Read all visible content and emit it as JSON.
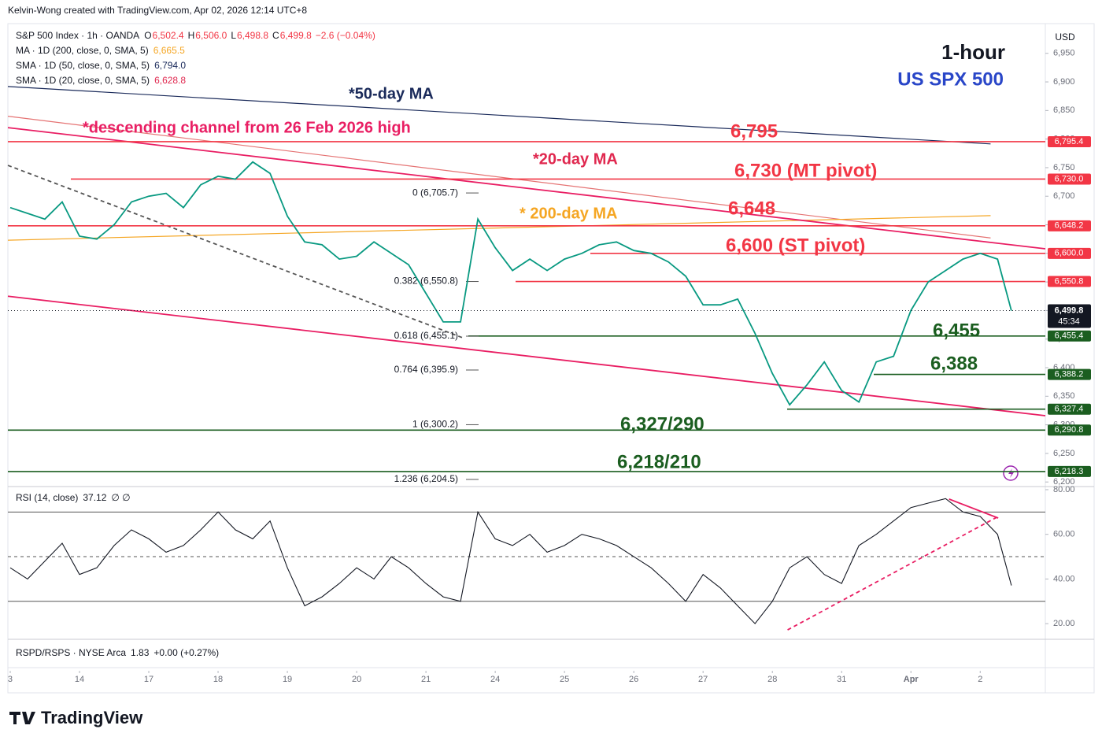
{
  "header": {
    "credit": "Kelvin-Wong created with TradingView.com, Apr 02, 2026 12:14 UTC+8"
  },
  "legend": {
    "symbol": "S&P 500 Index · 1h · OANDA",
    "ohlc": [
      {
        "key": "O",
        "value": "6,502.4"
      },
      {
        "key": "H",
        "value": "6,506.0"
      },
      {
        "key": "L",
        "value": "6,498.8"
      },
      {
        "key": "C",
        "value": "6,499.8"
      }
    ],
    "change": "−2.6 (−0.04%)",
    "indicators": [
      {
        "label": "MA · 1D (200, close, 0, SMA, 5)",
        "value": "6,665.5",
        "color": "#f5a623"
      },
      {
        "label": "SMA · 1D (50, close, 0, SMA, 5)",
        "value": "6,794.0",
        "color": "#1a2a5a"
      },
      {
        "label": "SMA · 1D (20, close, 0, SMA, 5)",
        "value": "6,628.8",
        "color": "#e0284f"
      }
    ]
  },
  "chart_data": [
    {
      "type": "line",
      "title": "US SPX 500",
      "subtitle": "1-hour",
      "currency": "USD",
      "x": [
        0,
        0.25,
        0.5,
        0.75,
        1,
        1.25,
        1.5,
        1.75,
        2,
        2.25,
        2.5,
        2.75,
        3,
        3.25,
        3.5,
        3.75,
        4,
        4.25,
        4.5,
        4.75,
        5,
        5.25,
        5.5,
        5.75,
        6,
        6.25,
        6.5,
        6.75,
        7,
        7.25,
        7.5,
        7.75,
        8,
        8.25,
        8.5,
        8.75,
        9,
        9.25,
        9.5,
        9.75,
        10,
        10.25,
        10.5,
        10.75,
        11,
        11.25,
        11.5,
        11.75,
        12,
        12.25,
        12.5,
        12.75,
        13,
        13.25,
        13.5,
        13.75,
        14,
        14.25,
        14.45
      ],
      "series": [
        {
          "color": "#089981",
          "values": [
            6680,
            6670,
            6660,
            6690,
            6630,
            6625,
            6650,
            6690,
            6700,
            6705,
            6680,
            6720,
            6735,
            6730,
            6760,
            6740,
            6665,
            6620,
            6615,
            6590,
            6595,
            6620,
            6600,
            6580,
            6530,
            6480,
            6480,
            6660,
            6610,
            6570,
            6590,
            6570,
            6590,
            6600,
            6615,
            6620,
            6605,
            6600,
            6585,
            6560,
            6510,
            6510,
            6520,
            6460,
            6390,
            6335,
            6370,
            6410,
            6360,
            6340,
            6410,
            6420,
            6500,
            6550,
            6570,
            6590,
            6600,
            6590,
            6499.8
          ]
        }
      ],
      "xlim": [
        -0.034,
        14.94
      ],
      "xticks": [
        {
          "value": 0,
          "label": "3"
        },
        {
          "value": 1,
          "label": "14"
        },
        {
          "value": 2,
          "label": "17"
        },
        {
          "value": 3,
          "label": "18"
        },
        {
          "value": 4,
          "label": "19"
        },
        {
          "value": 5,
          "label": "20"
        },
        {
          "value": 6,
          "label": "21"
        },
        {
          "value": 7,
          "label": "24"
        },
        {
          "value": 8,
          "label": "25"
        },
        {
          "value": 9,
          "label": "26"
        },
        {
          "value": 10,
          "label": "27"
        },
        {
          "value": 11,
          "label": "28"
        },
        {
          "value": 12,
          "label": "31"
        },
        {
          "value": 13,
          "label": "Apr"
        },
        {
          "value": 14,
          "label": "2"
        }
      ],
      "ylim": [
        6192,
        7002
      ],
      "yticks": [
        {
          "value": 6200,
          "label": "6,200"
        },
        {
          "value": 6250,
          "label": "6,250"
        },
        {
          "value": 6300,
          "label": "6,300"
        },
        {
          "value": 6350,
          "label": "6,350"
        },
        {
          "value": 6400,
          "label": "6,400"
        },
        {
          "value": 6450,
          "label": "6,450"
        },
        {
          "value": 6500,
          "label": "6,500"
        },
        {
          "value": 6550,
          "label": "6,550"
        },
        {
          "value": 6600,
          "label": "6,600"
        },
        {
          "value": 6650,
          "label": "6,650"
        },
        {
          "value": 6700,
          "label": "6,700"
        },
        {
          "value": 6750,
          "label": "6,750"
        },
        {
          "value": 6800,
          "label": "6,800"
        },
        {
          "value": 6850,
          "label": "6,850"
        },
        {
          "value": 6900,
          "label": "6,900"
        },
        {
          "value": 6950,
          "label": "6,950"
        }
      ],
      "last_price": {
        "value": 6499.8,
        "label": "6,499.8",
        "countdown": "45:34"
      },
      "levels": [
        {
          "value": 6795.4,
          "label": "6,795.4",
          "color": "#f23645"
        },
        {
          "value": 6730.0,
          "label": "6,730.0",
          "color": "#f23645"
        },
        {
          "value": 6648.2,
          "label": "6,648.2",
          "color": "#f23645"
        },
        {
          "value": 6600.0,
          "label": "6,600.0",
          "color": "#f23645"
        },
        {
          "value": 6550.8,
          "label": "6,550.8",
          "color": "#f23645"
        },
        {
          "value": 6455.4,
          "label": "6,455.4",
          "color": "#1b5e20"
        },
        {
          "value": 6388.2,
          "label": "6,388.2",
          "color": "#1b5e20"
        },
        {
          "value": 6327.4,
          "label": "6,327.4",
          "color": "#1b5e20"
        },
        {
          "value": 6290.8,
          "label": "6,290.8",
          "color": "#1b5e20"
        },
        {
          "value": 6218.3,
          "label": "6,218.3",
          "color": "#1b5e20"
        }
      ],
      "fib": [
        {
          "value": 6705.7,
          "label": "0 (6,705.7)"
        },
        {
          "value": 6550.8,
          "label": "0.382 (6,550.8)"
        },
        {
          "value": 6455.1,
          "label": "0.618 (6,455.1)"
        },
        {
          "value": 6395.9,
          "label": "0.764 (6,395.9)"
        },
        {
          "value": 6300.2,
          "label": "1 (6,300.2)"
        },
        {
          "value": 6204.5,
          "label": "1.236 (6,204.5)"
        }
      ],
      "overlays": [
        {
          "x": [
            -0.034,
            14.15
          ],
          "y": [
            6892,
            6791.5
          ],
          "color": "#1a2a5a",
          "dash": false
        },
        {
          "x": [
            -0.034,
            14.15
          ],
          "y": [
            6840,
            6627
          ],
          "color": "#e57373",
          "dash": false
        },
        {
          "x": [
            -0.034,
            14.15
          ],
          "y": [
            6623,
            6666
          ],
          "color": "#f5a623",
          "dash": false
        },
        {
          "x": [
            -0.034,
            14.94
          ],
          "y": [
            6820,
            6608
          ],
          "color": "#e91e63",
          "dash": false
        },
        {
          "x": [
            -0.034,
            14.94
          ],
          "y": [
            6525,
            6316
          ],
          "color": "#e91e63",
          "dash": false
        },
        {
          "x": [
            -0.034,
            6.56
          ],
          "y": [
            6754,
            6451
          ],
          "color": "#555",
          "dash": true
        }
      ],
      "annotations": [
        {
          "text": "1-hour",
          "color": "#131722"
        },
        {
          "text": "US SPX 500",
          "color": "#2946c8"
        },
        {
          "text": "*50-day MA",
          "color": "#1a2a5a"
        },
        {
          "text": "*descending channel from 26 Feb 2026 high",
          "color": "#e91e63"
        },
        {
          "text": "*20-day MA",
          "color": "#e0284f"
        },
        {
          "text": "* 200-day MA",
          "color": "#f5a623"
        },
        {
          "text": "6,795",
          "color": "#f23645"
        },
        {
          "text": "6,730 (MT pivot)",
          "color": "#f23645"
        },
        {
          "text": "6,648",
          "color": "#f23645"
        },
        {
          "text": "6,600 (ST pivot)",
          "color": "#f23645"
        },
        {
          "text": "6,455",
          "color": "#1b5e20"
        },
        {
          "text": "6,388",
          "color": "#1b5e20"
        },
        {
          "text": "6,327/290",
          "color": "#1b5e20"
        },
        {
          "text": "6,218/210",
          "color": "#1b5e20"
        }
      ]
    },
    {
      "type": "line",
      "title": "RSI (14, close)",
      "value_label": "37.12",
      "suffix": "∅ ∅",
      "series": [
        {
          "color": "#131722",
          "values": [
            45,
            40,
            48,
            56,
            42,
            45,
            55,
            62,
            58,
            52,
            55,
            62,
            70,
            62,
            58,
            66,
            45,
            28,
            32,
            38,
            45,
            40,
            50,
            45,
            38,
            32,
            30,
            70,
            58,
            55,
            60,
            52,
            55,
            60,
            58,
            55,
            50,
            45,
            38,
            30,
            42,
            36,
            28,
            20,
            30,
            45,
            50,
            42,
            38,
            55,
            60,
            66,
            72,
            74,
            76,
            70,
            68,
            60,
            37.12
          ]
        }
      ],
      "ylim": [
        13,
        81.4
      ],
      "yticks": [
        {
          "value": 20,
          "label": "20.00"
        },
        {
          "value": 40,
          "label": "40.00"
        },
        {
          "value": 60,
          "label": "60.00"
        },
        {
          "value": 80,
          "label": "80.00"
        }
      ],
      "bands": [
        70,
        50,
        30
      ],
      "overlays": [
        {
          "x": [
            11.22,
            14.26
          ],
          "y": [
            17.2,
            68
          ],
          "color": "#e91e63",
          "dash": true
        },
        {
          "x": [
            13.55,
            14.26
          ],
          "y": [
            75.8,
            67.3
          ],
          "color": "#e91e63",
          "dash": false
        }
      ]
    }
  ],
  "sub_pane": {
    "label": "RSPD/RSPS · NYSE Arca",
    "value": "1.83",
    "change": "+0.00 (+0.27%)"
  },
  "footer": {
    "brand": "TradingView"
  }
}
